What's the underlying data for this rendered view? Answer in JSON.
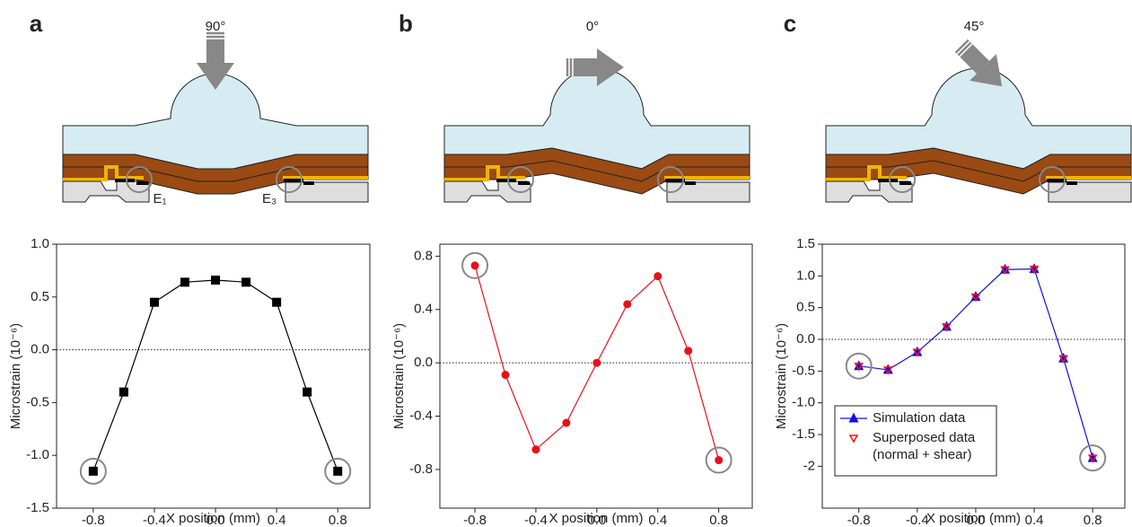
{
  "chart_data": [
    {
      "type": "line",
      "panel_label": "a",
      "annotation": "90°",
      "electrode_labels": [
        "E₁",
        "E₃"
      ],
      "xlabel": "X position (mm)",
      "ylabel": "Microstrain (10⁻⁶)",
      "x": [
        -0.8,
        -0.6,
        -0.4,
        -0.2,
        0,
        0.2,
        0.4,
        0.6,
        0.8
      ],
      "series": [
        {
          "color": "#000000",
          "marker": "square",
          "line": true,
          "values": [
            -1.15,
            -0.4,
            0.45,
            0.64,
            0.66,
            0.64,
            0.45,
            -0.4,
            -1.15
          ]
        }
      ],
      "xlim": [
        -1.04,
        1.01
      ],
      "xticks": [
        -0.8,
        -0.4,
        {
          "value": 0,
          "label": "0.0"
        },
        0.4,
        0.8
      ],
      "ylim": [
        -1.5,
        1.0
      ],
      "yticks": [
        -1.5,
        {
          "value": -1,
          "label": "-1.0"
        },
        -0.5,
        {
          "value": 0,
          "label": "0.0"
        },
        0.5,
        {
          "value": 1,
          "label": "1.0"
        }
      ]
    },
    {
      "type": "line",
      "panel_label": "b",
      "annotation": "0°",
      "xlabel": "X position (mm)",
      "ylabel": "Microstrain (10⁻⁶)",
      "x": [
        -0.8,
        -0.6,
        -0.4,
        -0.2,
        0,
        0.2,
        0.4,
        0.6,
        0.8
      ],
      "series": [
        {
          "color": "#e8101a",
          "marker": "circle",
          "line": true,
          "values": [
            0.73,
            -0.09,
            -0.65,
            -0.45,
            0,
            0.44,
            0.65,
            0.09,
            -0.73
          ]
        }
      ],
      "xlim": [
        -1.03,
        1.02
      ],
      "xticks": [
        -0.8,
        -0.4,
        {
          "value": 0,
          "label": "0.0"
        },
        0.4,
        0.8
      ],
      "ylim": [
        -1.09,
        0.89
      ],
      "yticks": [
        -0.8,
        -0.4,
        {
          "value": 0,
          "label": "0.0"
        },
        0.4,
        0.8
      ]
    },
    {
      "type": "line",
      "panel_label": "c",
      "annotation": "45°",
      "xlabel": "X position (mm)",
      "ylabel": "Microstrain (10⁻⁶)",
      "x": [
        -0.8,
        -0.6,
        -0.4,
        -0.2,
        0,
        0.2,
        0.4,
        0.6,
        0.8
      ],
      "series": [
        {
          "name": "Simulation data",
          "color": "#1010e0",
          "marker": "triangle-up",
          "line": true,
          "values": [
            -0.42,
            -0.48,
            -0.2,
            0.2,
            0.67,
            1.1,
            1.11,
            -0.3,
            -1.87
          ]
        },
        {
          "name": "Superposed data (normal + shear)",
          "color": "#ff1010",
          "marker": "triangle-down-open",
          "line": false,
          "values": [
            -0.42,
            -0.48,
            -0.2,
            0.2,
            0.67,
            1.1,
            1.11,
            -0.3,
            -1.87
          ]
        }
      ],
      "xlim": [
        -1.05,
        1.02
      ],
      "xticks": [
        -0.8,
        -0.4,
        {
          "value": 0,
          "label": "0.0"
        },
        0.4,
        0.8
      ],
      "ylim": [
        -2.66,
        1.5
      ],
      "yticks": [
        -2,
        -1.5,
        {
          "value": -1,
          "label": "-1.0"
        },
        -0.5,
        {
          "value": 0,
          "label": "0.0"
        },
        0.5,
        {
          "value": 1,
          "label": "1.0"
        },
        1.5
      ]
    }
  ]
}
